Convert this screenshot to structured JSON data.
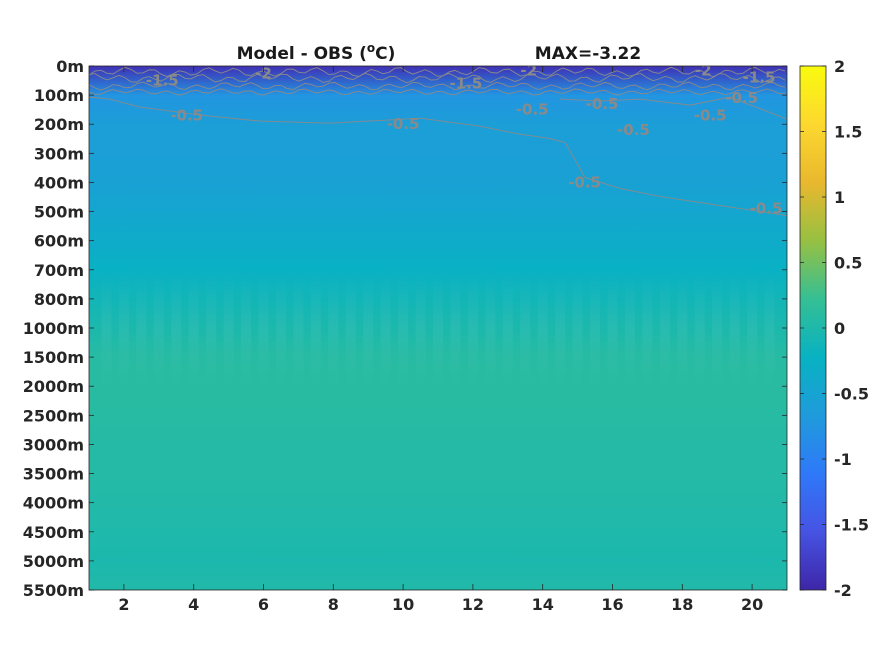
{
  "chart_data": {
    "type": "heatmap",
    "title": "Model - OBS (°C)",
    "title_parts": {
      "prefix": "Model - OBS (",
      "degree": "o",
      "suffix": "C)"
    },
    "max_label": "MAX=-3.22",
    "xlim": [
      1,
      21
    ],
    "x_ticks": [
      2,
      4,
      6,
      8,
      10,
      12,
      14,
      16,
      18,
      20
    ],
    "y_tick_labels": [
      "0m",
      "100m",
      "200m",
      "300m",
      "400m",
      "500m",
      "600m",
      "700m",
      "800m",
      "1000m",
      "1500m",
      "2000m",
      "2500m",
      "3000m",
      "3500m",
      "4000m",
      "4500m",
      "5000m",
      "5500m"
    ],
    "colorbar": {
      "clim": [
        -2,
        2
      ],
      "ticks": [
        2,
        1.5,
        1,
        0.5,
        0,
        -0.5,
        -1,
        -1.5,
        -2
      ],
      "colormap": [
        "#3e26a8",
        "#4653e3",
        "#2f79f9",
        "#1f9bdb",
        "#08b2c2",
        "#35bf94",
        "#97c042",
        "#e9b82e",
        "#fcd82f",
        "#f9fb0e"
      ]
    },
    "depth_profile": {
      "levels": [
        "0m",
        "100m",
        "200m",
        "300m",
        "400m",
        "500m",
        "600m",
        "700m",
        "800m",
        "1000m",
        "1500m",
        "2000m",
        "2500m",
        "3000m",
        "3500m",
        "4000m",
        "4500m",
        "5000m",
        "5500m"
      ],
      "values": [
        -1.9,
        -0.75,
        -0.6,
        -0.58,
        -0.55,
        -0.45,
        -0.35,
        -0.25,
        -0.12,
        -0.02,
        0.08,
        0.1,
        0.08,
        0.06,
        0.05,
        0.03,
        0.0,
        -0.02,
        0.02
      ]
    },
    "contour_labels": [
      {
        "text": "-1.5",
        "x": 3.1,
        "depth": "50m"
      },
      {
        "text": "-2",
        "x": 6.0,
        "depth": "25m"
      },
      {
        "text": "-0.5",
        "x": 3.8,
        "depth": "170m"
      },
      {
        "text": "-1.5",
        "x": 11.8,
        "depth": "60m"
      },
      {
        "text": "-2",
        "x": 13.6,
        "depth": "15m"
      },
      {
        "text": "-0.5",
        "x": 10.0,
        "depth": "200m"
      },
      {
        "text": "-0.5",
        "x": 13.7,
        "depth": "150m"
      },
      {
        "text": "-0.5",
        "x": 15.7,
        "depth": "130m"
      },
      {
        "text": "-0.5",
        "x": 16.6,
        "depth": "220m"
      },
      {
        "text": "-0.5",
        "x": 15.2,
        "depth": "400m"
      },
      {
        "text": "-0.5",
        "x": 18.8,
        "depth": "170m"
      },
      {
        "text": "-2",
        "x": 18.6,
        "depth": "15m"
      },
      {
        "text": "-1.5",
        "x": 20.2,
        "depth": "40m"
      },
      {
        "text": "-0.5",
        "x": 19.7,
        "depth": "110m"
      },
      {
        "text": "-0.5",
        "x": 20.4,
        "depth": "490m"
      }
    ],
    "contour_color": "#8a8a8a"
  }
}
